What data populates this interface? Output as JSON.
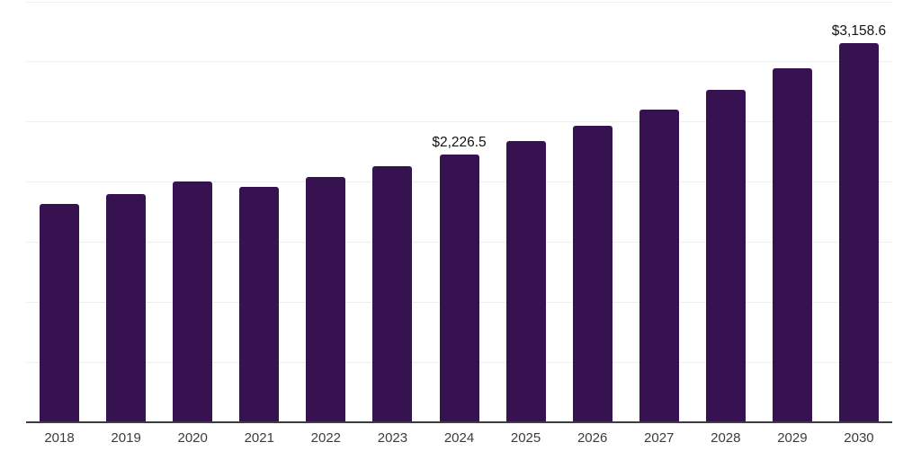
{
  "chart_data": {
    "type": "bar",
    "title": "",
    "xlabel": "",
    "ylabel": "",
    "categories": [
      "2018",
      "2019",
      "2020",
      "2021",
      "2022",
      "2023",
      "2024",
      "2025",
      "2026",
      "2027",
      "2028",
      "2029",
      "2030"
    ],
    "values": [
      1815,
      1900,
      2005,
      1960,
      2040,
      2130,
      2226.5,
      2340,
      2465,
      2600,
      2765,
      2945,
      3158.6
    ],
    "value_labels": [
      null,
      null,
      null,
      null,
      null,
      null,
      "$2,226.5",
      null,
      null,
      null,
      null,
      null,
      "$3,158.6"
    ],
    "ylim": [
      0,
      3500
    ],
    "grid_step": 500,
    "grid": "horizontal-only",
    "legend": "none",
    "bar_color": "#361250",
    "axis_line_color": "#3d3d3d",
    "gridline_color": "#eeeeee",
    "value_label_color": "#141414",
    "tick_label_color": "#3c3c3c"
  }
}
